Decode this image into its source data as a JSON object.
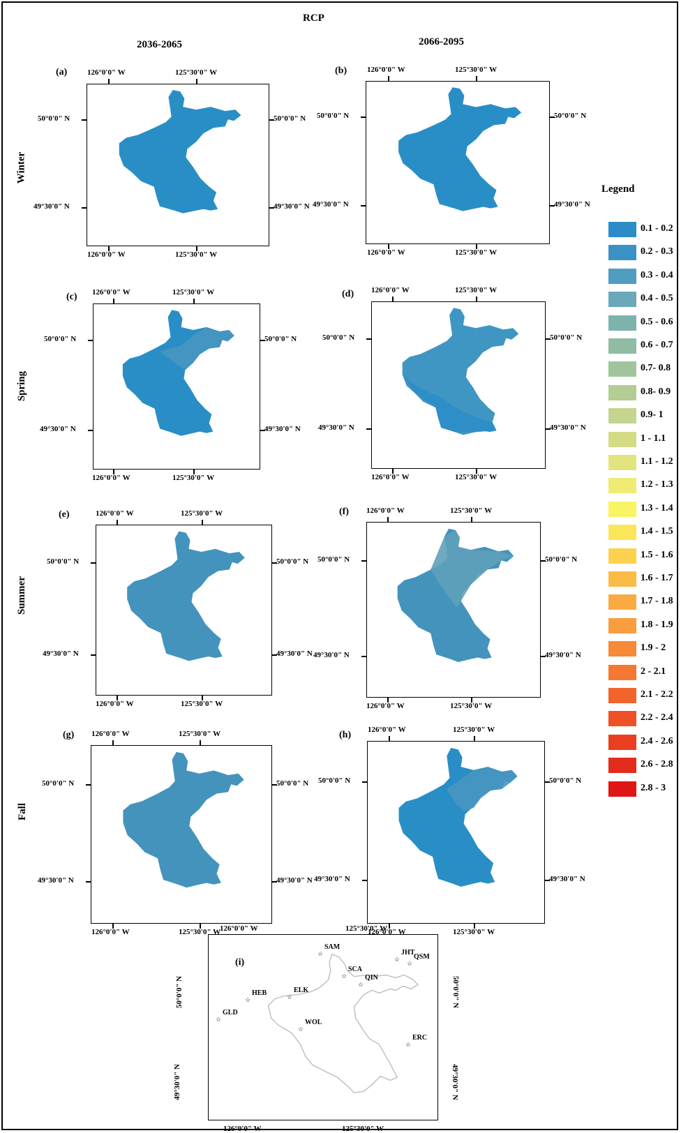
{
  "title": "RCP",
  "columns": [
    "2036-2065",
    "2066-2095"
  ],
  "rows": [
    "Winter",
    "Spring",
    "Summer",
    "Fall"
  ],
  "coords": {
    "lon_left": "126°0'0\" W",
    "lon_right": "125°30'0\" W",
    "lat_top": "50°0'0\" N",
    "lat_bottom": "49°30'0\" N"
  },
  "panels": [
    {
      "label": "(a)",
      "fill": "#2a8ec6",
      "overlay": null
    },
    {
      "label": "(b)",
      "fill": "#2a8ec6",
      "overlay": null
    },
    {
      "label": "(c)",
      "fill": "#2a8ec6",
      "overlay": "#4796c0"
    },
    {
      "label": "(d)",
      "fill": "#4096c3",
      "overlay": "#2c8dc8"
    },
    {
      "label": "(e)",
      "fill": "#4493bd",
      "overlay": null
    },
    {
      "label": "(f)",
      "fill": "#4493bd",
      "overlay": "#5fa1ba"
    },
    {
      "label": "(g)",
      "fill": "#4493bd",
      "overlay": null
    },
    {
      "label": "(h)",
      "fill": "#2a8ec6",
      "overlay": "#4796c0"
    }
  ],
  "legend": {
    "title": "Legend",
    "items": [
      {
        "label": "0.1 - 0.2",
        "color": "#2b8cc8"
      },
      {
        "label": "0.2 - 0.3",
        "color": "#3a92c4"
      },
      {
        "label": "0.3 - 0.4",
        "color": "#4f9dc0"
      },
      {
        "label": "0.4 - 0.5",
        "color": "#69a9b9"
      },
      {
        "label": "0.5 - 0.6",
        "color": "#7eb3ad"
      },
      {
        "label": "0.6 - 0.7",
        "color": "#8fbca3"
      },
      {
        "label": "0.7- 0.8",
        "color": "#a0c59c"
      },
      {
        "label": "0.8- 0.9",
        "color": "#b3cd94"
      },
      {
        "label": "0.9- 1",
        "color": "#c3d58e"
      },
      {
        "label": "1 - 1.1",
        "color": "#d3dc85"
      },
      {
        "label": "1.1 - 1.2",
        "color": "#e2e57d"
      },
      {
        "label": "1.2 - 1.3",
        "color": "#eeec72"
      },
      {
        "label": "1.3 - 1.4",
        "color": "#f8f462"
      },
      {
        "label": "1.4 - 1.5",
        "color": "#fbe65a"
      },
      {
        "label": "1.5 - 1.6",
        "color": "#fbd24f"
      },
      {
        "label": "1.6 - 1.7",
        "color": "#fbbb47"
      },
      {
        "label": "1.7 - 1.8",
        "color": "#f9ab42"
      },
      {
        "label": "1.8 - 1.9",
        "color": "#f99d3e"
      },
      {
        "label": "1.9 - 2",
        "color": "#f78a37"
      },
      {
        "label": "2 - 2.1",
        "color": "#f57832"
      },
      {
        "label": "2.1 - 2.2",
        "color": "#f1652c"
      },
      {
        "label": "2.2 - 2.4",
        "color": "#ee5126"
      },
      {
        "label": "2.4 - 2.6",
        "color": "#ea3e21"
      },
      {
        "label": "2.6 - 2.8",
        "color": "#e42c1c"
      },
      {
        "label": "2.8 - 3",
        "color": "#e01515"
      }
    ]
  },
  "station_map": {
    "label": "(i)",
    "stations": [
      "SAM",
      "JHT",
      "QSM",
      "SCA",
      "QIN",
      "ELK",
      "HEB",
      "GLD",
      "WOL",
      "ERC"
    ]
  }
}
